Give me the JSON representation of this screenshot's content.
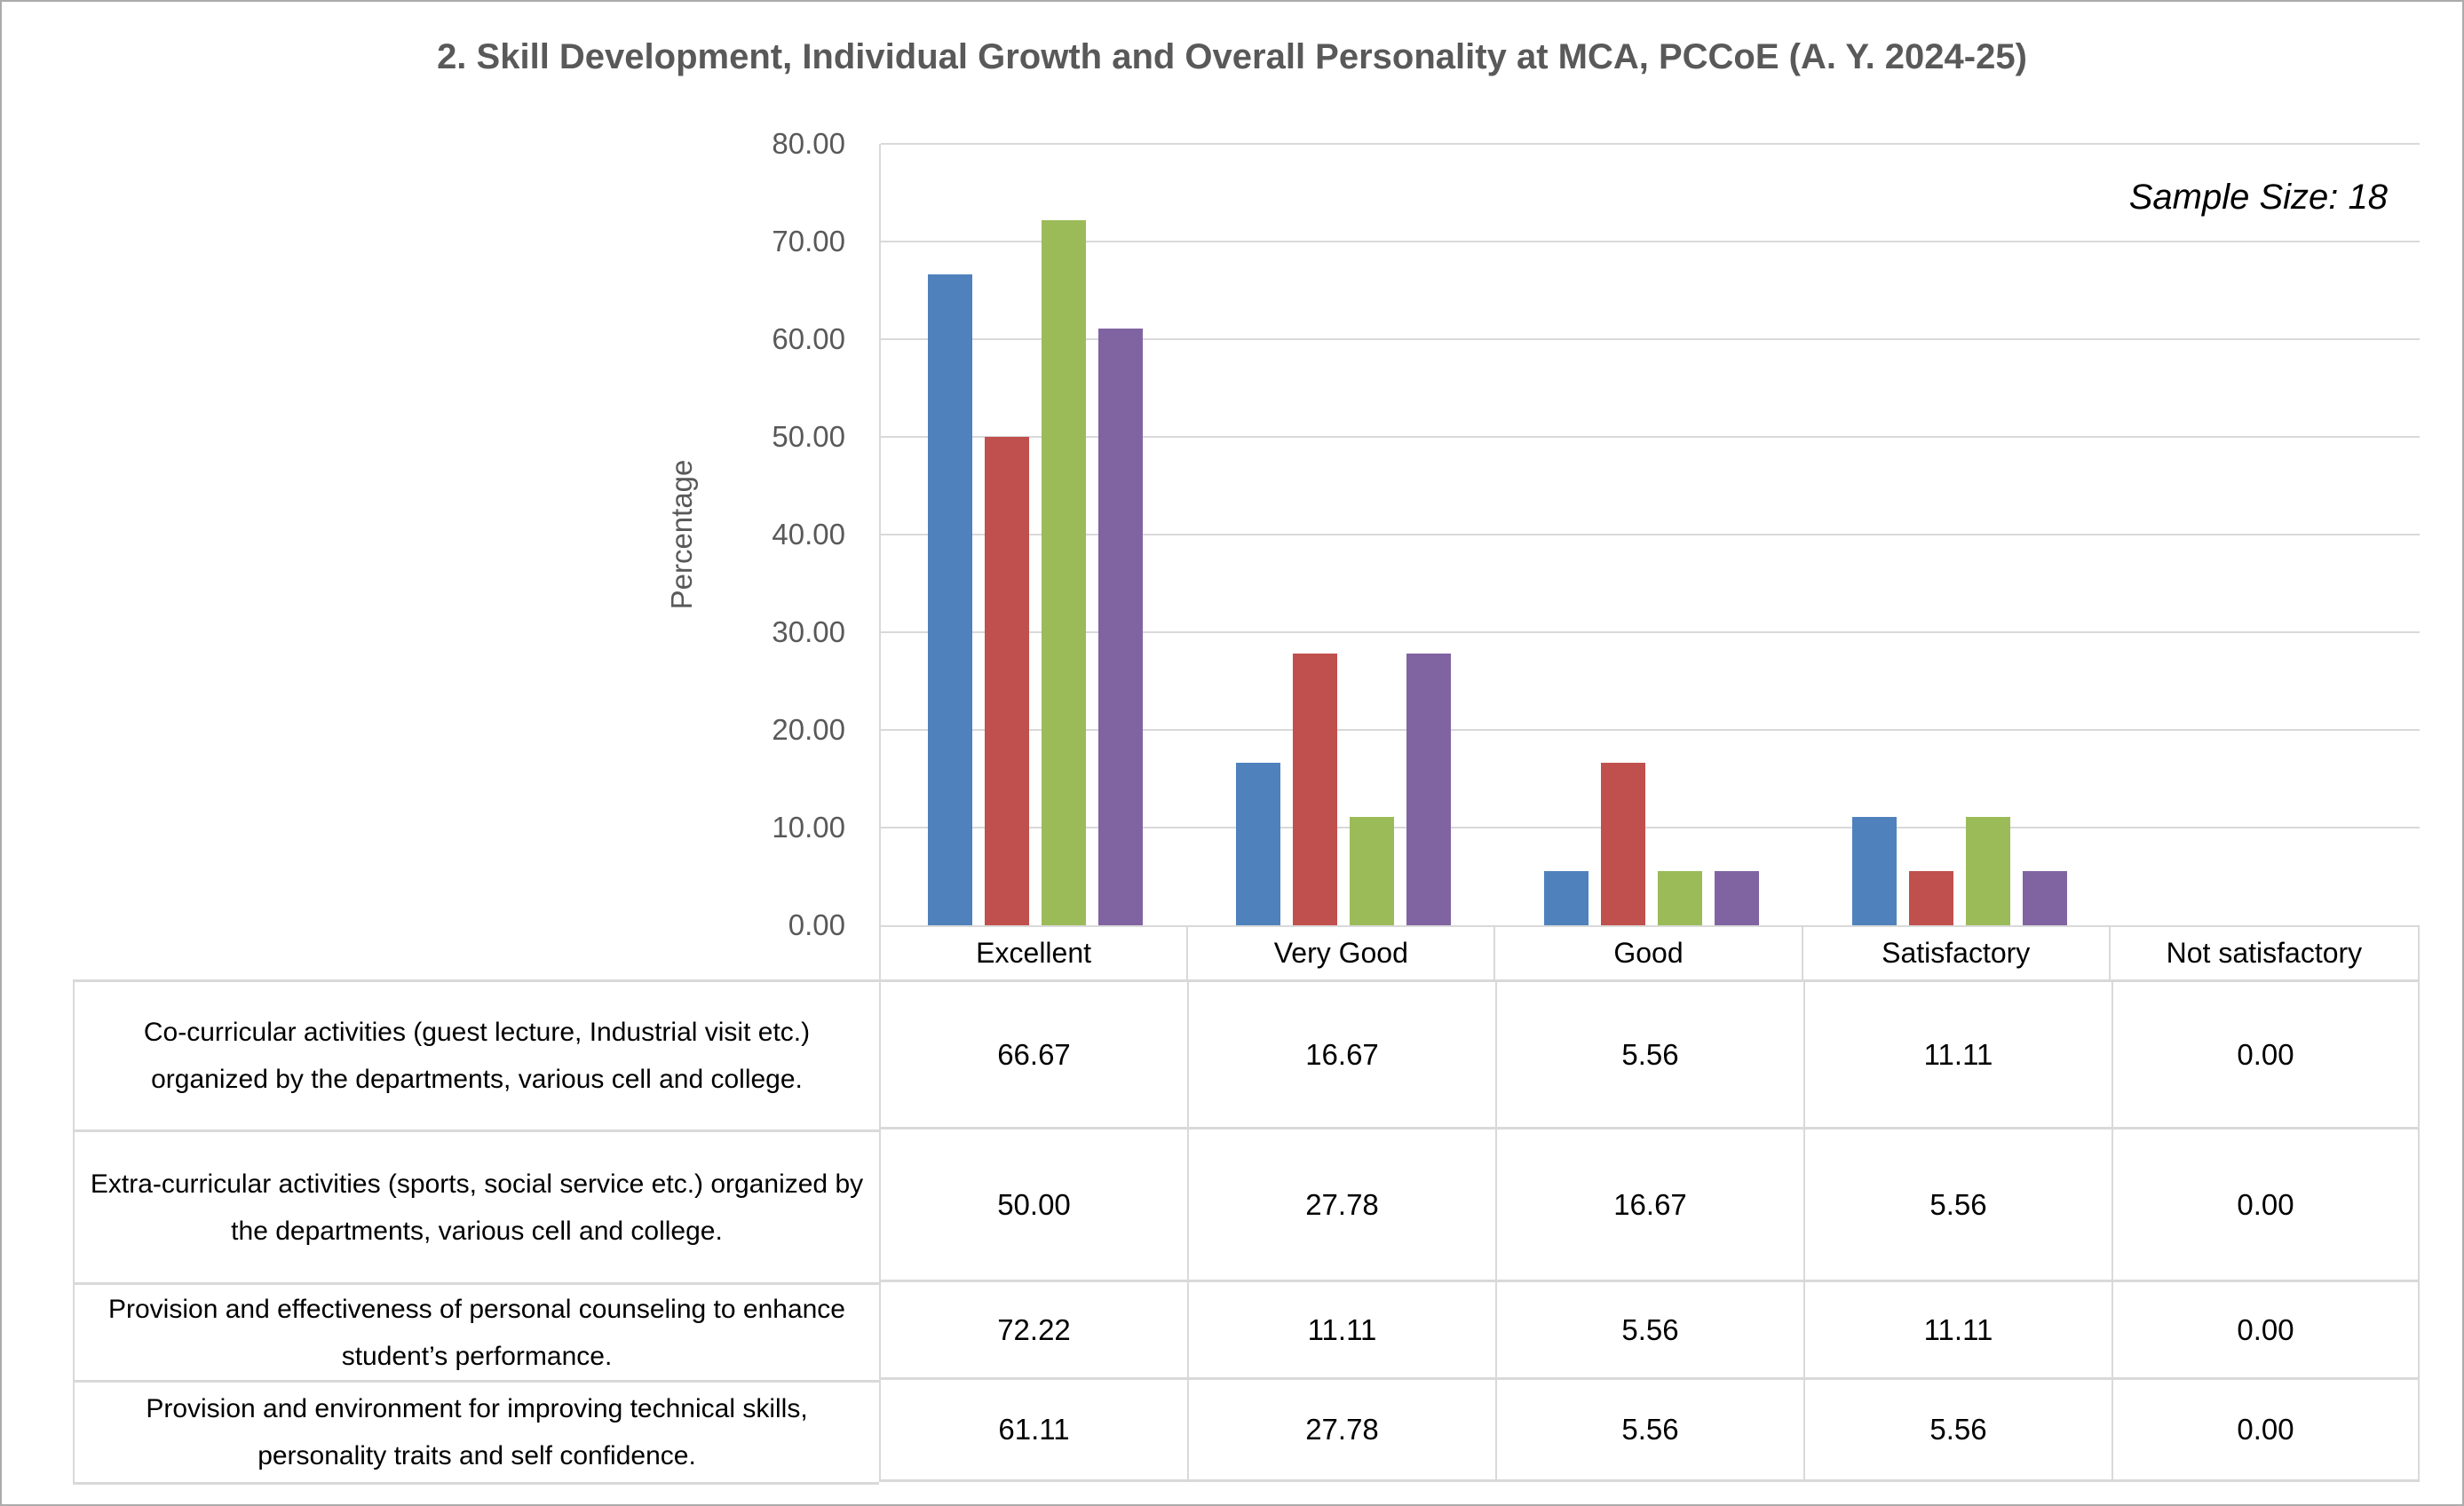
{
  "chart_data": {
    "type": "bar",
    "title": "2. Skill Development, Individual Growth and Overall Personality at MCA, PCCoE (A. Y. 2024-25)",
    "annotation": "Sample Size: 18",
    "xlabel": "",
    "ylabel": "Percentage",
    "ylim": [
      0,
      80
    ],
    "ytick_step": 10,
    "ytick_format": "two_decimals",
    "grid": true,
    "legend_position": "none",
    "data_table_shown": true,
    "categories": [
      "Excellent",
      "Very Good",
      "Good",
      "Satisfactory",
      "Not satisfactory"
    ],
    "series": [
      {
        "name": "Co-curricular activities (guest lecture, Industrial visit etc.) organized by the departments, various cell and college.",
        "color": "#4F81BD",
        "values": [
          66.67,
          16.67,
          5.56,
          11.11,
          0.0
        ]
      },
      {
        "name": "Extra-curricular activities (sports, social service etc.) organized by the departments, various cell and college.",
        "color": "#C0504D",
        "values": [
          50.0,
          27.78,
          16.67,
          5.56,
          0.0
        ]
      },
      {
        "name": "Provision and effectiveness of personal counseling to enhance student’s performance.",
        "color": "#9BBB59",
        "values": [
          72.22,
          11.11,
          5.56,
          11.11,
          0.0
        ]
      },
      {
        "name": "Provision and environment for improving technical skills, personality traits and self confidence.",
        "color": "#8064A2",
        "values": [
          61.11,
          27.78,
          5.56,
          5.56,
          0.0
        ]
      }
    ]
  },
  "colors": {
    "gridline": "#D9D9D9",
    "table_border": "#D9D9D9",
    "title_text": "#595959",
    "axis_text": "#595959",
    "table_text": "#000000",
    "page_border": "#ABABAB",
    "background": "#FFFFFF"
  }
}
